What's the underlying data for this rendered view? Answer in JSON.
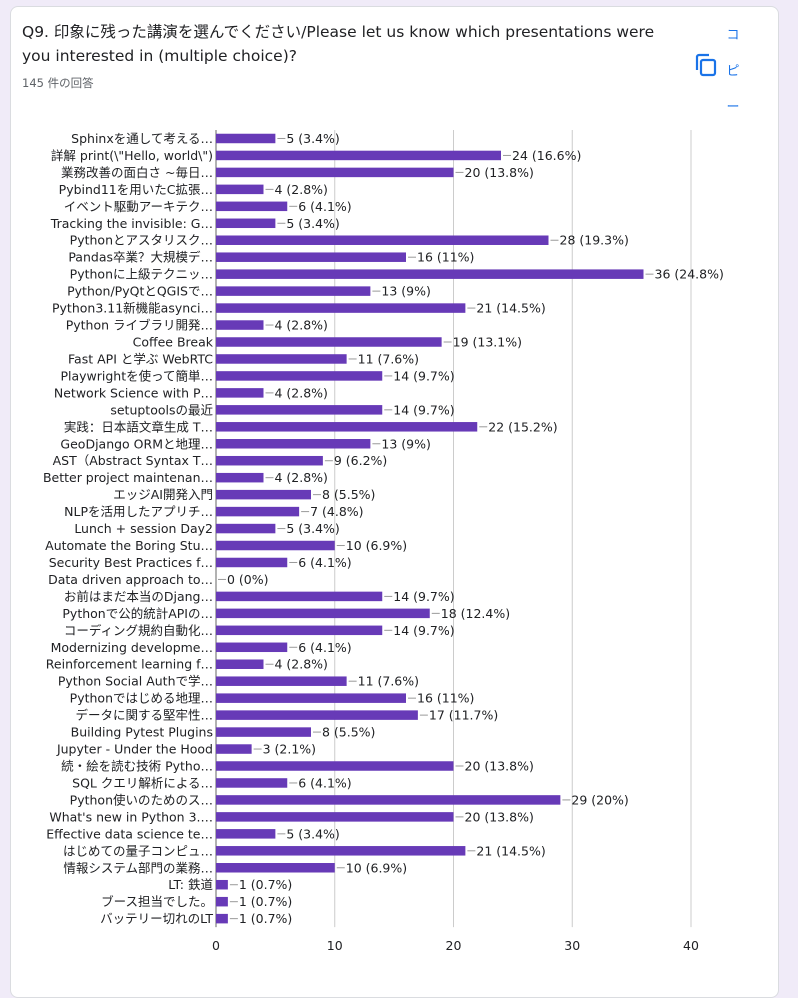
{
  "question": {
    "title": "Q9. 印象に残った講演を選んでください/Please let us know which presentations were you interested in (multiple choice)?",
    "response_count": "145 件の回答",
    "copy_label": "コピー",
    "copy_icon": "copy-icon"
  },
  "colors": {
    "bar": "#673ab7",
    "text": "#202124",
    "axis": "#666666",
    "grid": "#cccccc",
    "background": "#f0ebf8",
    "accent": "#1a73e8"
  },
  "chart_data": {
    "type": "bar",
    "orientation": "horizontal",
    "xlim": [
      0,
      40
    ],
    "xticks": [
      0,
      10,
      20,
      30,
      40
    ],
    "grid": true,
    "categories": [
      "Sphinxを通して考える…",
      "詳解 print(\\\"Hello, world\\\")",
      "業務改善の面白さ ~毎日…",
      "Pybind11を用いたC拡張…",
      "イベント駆動アーキテク…",
      "Tracking the invisible: G…",
      "Pythonとアスタリスク…",
      "Pandas卒業？大規模デ…",
      "Pythonに上級テクニッ…",
      "Python/PyQtとQGISで…",
      "Python3.11新機能asynci…",
      "Python ライブラリ開発…",
      "Coffee Break",
      "Fast API と学ぶ WebRTC",
      "Playwrightを使って簡単…",
      "Network Science with P…",
      "setuptoolsの最近",
      "実践：日本語文章生成 T…",
      "GeoDjango ORMと地理…",
      "AST（Abstract Syntax T…",
      "Better project maintenan…",
      "エッジAI開発入門",
      "NLPを活用したアプリチ…",
      "Lunch + session Day2",
      "Automate the Boring Stu…",
      "Security Best Practices f…",
      "Data driven approach to…",
      "お前はまだ本当のDjang…",
      "Pythonで公的統計APIの…",
      "コーディング規約自動化…",
      "Modernizing developme…",
      "Reinforcement learning f…",
      "Python Social Authで学…",
      "Pythonではじめる地理…",
      "データに関する堅牢性…",
      "Building Pytest Plugins",
      "Jupyter - Under the Hood",
      "続・絵を読む技術 Pytho…",
      "SQL クエリ解析による…",
      "Python使いのためのス…",
      "What's new in Python 3.…",
      "Effective data science te…",
      "はじめての量子コンピュ…",
      "情報システム部門の業務…",
      "LT: 鉄道",
      "ブース担当でした。",
      "バッテリー切れのLT"
    ],
    "values": [
      5,
      24,
      20,
      4,
      6,
      5,
      28,
      16,
      36,
      13,
      21,
      4,
      19,
      11,
      14,
      4,
      14,
      22,
      13,
      9,
      4,
      8,
      7,
      5,
      10,
      6,
      0,
      14,
      18,
      14,
      6,
      4,
      11,
      16,
      17,
      8,
      3,
      20,
      6,
      29,
      20,
      5,
      21,
      10,
      1,
      1,
      1
    ],
    "labels": [
      "5 (3.4%)",
      "24 (16.6%)",
      "20 (13.8%)",
      "4 (2.8%)",
      "6 (4.1%)",
      "5 (3.4%)",
      "28 (19.3%)",
      "16 (11%)",
      "36 (24.8%)",
      "13 (9%)",
      "21 (14.5%)",
      "4 (2.8%)",
      "19 (13.1%)",
      "11 (7.6%)",
      "14 (9.7%)",
      "4 (2.8%)",
      "14 (9.7%)",
      "22 (15.2%)",
      "13 (9%)",
      "9 (6.2%)",
      "4 (2.8%)",
      "8 (5.5%)",
      "7 (4.8%)",
      "5 (3.4%)",
      "10 (6.9%)",
      "6 (4.1%)",
      "0 (0%)",
      "14 (9.7%)",
      "18 (12.4%)",
      "14 (9.7%)",
      "6 (4.1%)",
      "4 (2.8%)",
      "11 (7.6%)",
      "16 (11%)",
      "17 (11.7%)",
      "8 (5.5%)",
      "3 (2.1%)",
      "20 (13.8%)",
      "6 (4.1%)",
      "29 (20%)",
      "20 (13.8%)",
      "5 (3.4%)",
      "21 (14.5%)",
      "10 (6.9%)",
      "1 (0.7%)",
      "1 (0.7%)",
      "1 (0.7%)"
    ]
  }
}
